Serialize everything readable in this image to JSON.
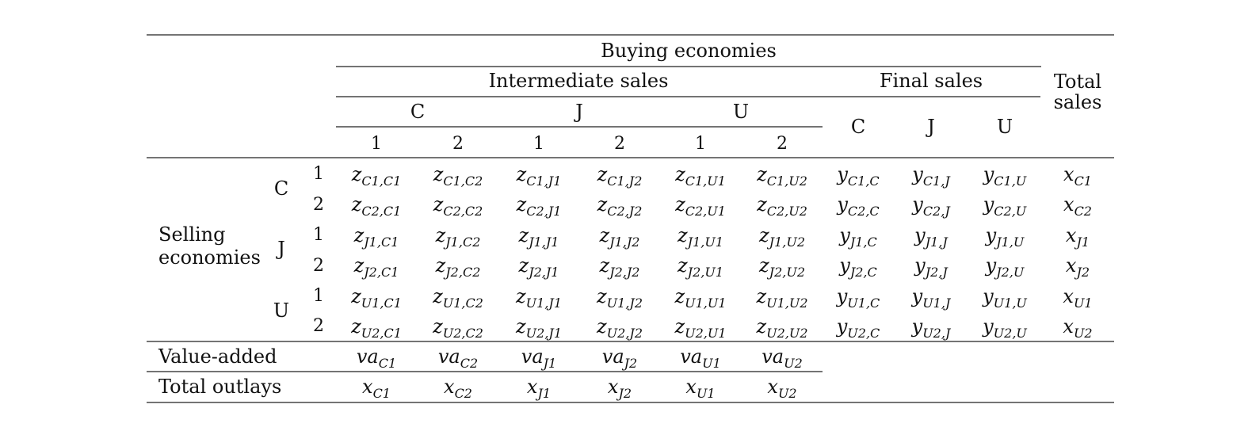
{
  "header": {
    "buying": "Buying economies",
    "intermediate": "Intermediate sales",
    "final": "Final sales",
    "total_sales_line1": "Total",
    "total_sales_line2": "sales",
    "countries": [
      "C",
      "J",
      "U"
    ],
    "sectors": [
      "1",
      "2",
      "1",
      "2",
      "1",
      "2"
    ],
    "final_countries": [
      "C",
      "J",
      "U"
    ]
  },
  "stub": {
    "selling_line1": "Selling",
    "selling_line2": "economies",
    "countries": [
      "C",
      "J",
      "U"
    ],
    "sectors": [
      "1",
      "2",
      "1",
      "2",
      "1",
      "2"
    ]
  },
  "rows": [
    [
      "z|C1,C1",
      "z|C1,C2",
      "z|C1,J1",
      "z|C1,J2",
      "z|C1,U1",
      "z|C1,U2",
      "y|C1,C",
      "y|C1,J",
      "y|C1,U",
      "x|C1"
    ],
    [
      "z|C2,C1",
      "z|C2,C2",
      "z|C2,J1",
      "z|C2,J2",
      "z|C2,U1",
      "z|C2,U2",
      "y|C2,C",
      "y|C2,J",
      "y|C2,U",
      "x|C2"
    ],
    [
      "z|J1,C1",
      "z|J1,C2",
      "z|J1,J1",
      "z|J1,J2",
      "z|J1,U1",
      "z|J1,U2",
      "y|J1,C",
      "y|J1,J",
      "y|J1,U",
      "x|J1"
    ],
    [
      "z|J2,C1",
      "z|J2,C2",
      "z|J2,J1",
      "z|J2,J2",
      "z|J2,U1",
      "z|J2,U2",
      "y|J2,C",
      "y|J2,J",
      "y|J2,U",
      "x|J2"
    ],
    [
      "z|U1,C1",
      "z|U1,C2",
      "z|U1,J1",
      "z|U1,J2",
      "z|U1,U1",
      "z|U1,U2",
      "y|U1,C",
      "y|U1,J",
      "y|U1,U",
      "x|U1"
    ],
    [
      "z|U2,C1",
      "z|U2,C2",
      "z|U2,J1",
      "z|U2,J2",
      "z|U2,U1",
      "z|U2,U2",
      "y|U2,C",
      "y|U2,J",
      "y|U2,U",
      "x|U2"
    ]
  ],
  "value_added": {
    "label": "Value-added",
    "cells": [
      "va|C1",
      "va|C2",
      "va|J1",
      "va|J2",
      "va|U1",
      "va|U2"
    ]
  },
  "total_outlays": {
    "label": "Total outlays",
    "cells": [
      "x|C1",
      "x|C2",
      "x|J1",
      "x|J2",
      "x|U1",
      "x|U2"
    ]
  }
}
